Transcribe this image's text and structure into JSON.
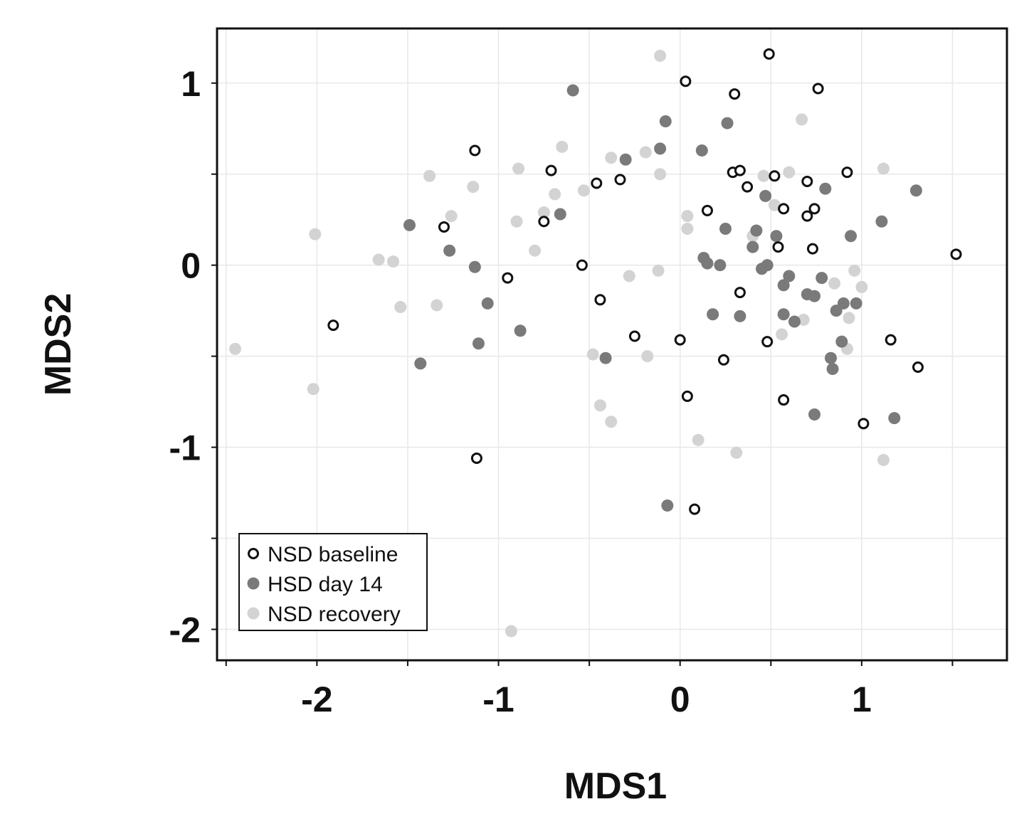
{
  "chart_data": {
    "type": "scatter",
    "xlabel": "MDS1",
    "ylabel": "MDS2",
    "xlim": [
      -2.55,
      1.8
    ],
    "ylim": [
      -2.17,
      1.3
    ],
    "xticks": [
      -2,
      -1,
      0,
      1
    ],
    "yticks": [
      1,
      0,
      -1,
      -2
    ],
    "xtick_labels": [
      "-2",
      "-1",
      "0",
      "1"
    ],
    "ytick_labels": [
      "1",
      "0",
      "-1",
      "-2"
    ],
    "grid": true,
    "legend_position": "bottom-left",
    "series": [
      {
        "name": "NSD baseline",
        "style": "open",
        "color": "#111111",
        "points": [
          [
            0.49,
            1.16
          ],
          [
            0.03,
            1.01
          ],
          [
            0.3,
            0.94
          ],
          [
            0.76,
            0.97
          ],
          [
            -1.13,
            0.63
          ],
          [
            -0.71,
            0.52
          ],
          [
            0.29,
            0.51
          ],
          [
            0.33,
            0.52
          ],
          [
            0.52,
            0.49
          ],
          [
            0.92,
            0.51
          ],
          [
            -0.46,
            0.45
          ],
          [
            -0.33,
            0.47
          ],
          [
            0.7,
            0.46
          ],
          [
            0.37,
            0.43
          ],
          [
            0.15,
            0.3
          ],
          [
            0.57,
            0.31
          ],
          [
            0.74,
            0.31
          ],
          [
            0.7,
            0.27
          ],
          [
            -0.75,
            0.24
          ],
          [
            -1.3,
            0.21
          ],
          [
            0.54,
            0.1
          ],
          [
            0.73,
            0.09
          ],
          [
            1.52,
            0.06
          ],
          [
            -0.54,
            0.0
          ],
          [
            -0.95,
            -0.07
          ],
          [
            0.33,
            -0.15
          ],
          [
            -0.44,
            -0.19
          ],
          [
            -1.91,
            -0.33
          ],
          [
            -0.25,
            -0.39
          ],
          [
            0.0,
            -0.41
          ],
          [
            0.48,
            -0.42
          ],
          [
            1.16,
            -0.41
          ],
          [
            0.24,
            -0.52
          ],
          [
            1.31,
            -0.56
          ],
          [
            0.04,
            -0.72
          ],
          [
            0.57,
            -0.74
          ],
          [
            1.01,
            -0.87
          ],
          [
            -1.12,
            -1.06
          ],
          [
            0.08,
            -1.34
          ]
        ]
      },
      {
        "name": "HSD day 14",
        "style": "filled",
        "color": "#7a7a7a",
        "points": [
          [
            -0.59,
            0.96
          ],
          [
            -0.08,
            0.79
          ],
          [
            0.26,
            0.78
          ],
          [
            -0.11,
            0.64
          ],
          [
            0.12,
            0.63
          ],
          [
            -0.3,
            0.58
          ],
          [
            0.8,
            0.42
          ],
          [
            1.3,
            0.41
          ],
          [
            0.47,
            0.38
          ],
          [
            -0.66,
            0.28
          ],
          [
            1.11,
            0.24
          ],
          [
            -1.49,
            0.22
          ],
          [
            0.25,
            0.2
          ],
          [
            0.42,
            0.19
          ],
          [
            0.53,
            0.16
          ],
          [
            0.94,
            0.16
          ],
          [
            -1.27,
            0.08
          ],
          [
            0.4,
            0.1
          ],
          [
            0.13,
            0.04
          ],
          [
            0.15,
            0.01
          ],
          [
            0.22,
            0.0
          ],
          [
            0.45,
            -0.02
          ],
          [
            0.48,
            0.0
          ],
          [
            -1.13,
            -0.01
          ],
          [
            0.6,
            -0.06
          ],
          [
            0.78,
            -0.07
          ],
          [
            0.57,
            -0.11
          ],
          [
            0.7,
            -0.16
          ],
          [
            0.74,
            -0.17
          ],
          [
            -1.06,
            -0.21
          ],
          [
            0.9,
            -0.21
          ],
          [
            0.97,
            -0.21
          ],
          [
            0.86,
            -0.25
          ],
          [
            0.18,
            -0.27
          ],
          [
            0.33,
            -0.28
          ],
          [
            0.57,
            -0.27
          ],
          [
            0.63,
            -0.31
          ],
          [
            -0.88,
            -0.36
          ],
          [
            -1.11,
            -0.43
          ],
          [
            0.89,
            -0.42
          ],
          [
            0.83,
            -0.51
          ],
          [
            -0.41,
            -0.51
          ],
          [
            -1.43,
            -0.54
          ],
          [
            0.84,
            -0.57
          ],
          [
            0.74,
            -0.82
          ],
          [
            1.18,
            -0.84
          ],
          [
            -0.07,
            -1.32
          ]
        ]
      },
      {
        "name": "NSD recovery",
        "style": "filled",
        "color": "#d3d3d3",
        "points": [
          [
            -0.11,
            1.15
          ],
          [
            0.67,
            0.8
          ],
          [
            -0.65,
            0.65
          ],
          [
            -0.38,
            0.59
          ],
          [
            -0.19,
            0.62
          ],
          [
            -0.89,
            0.53
          ],
          [
            1.12,
            0.53
          ],
          [
            0.6,
            0.51
          ],
          [
            -1.38,
            0.49
          ],
          [
            -0.11,
            0.5
          ],
          [
            0.46,
            0.49
          ],
          [
            -1.14,
            0.43
          ],
          [
            -0.69,
            0.39
          ],
          [
            -0.53,
            0.41
          ],
          [
            0.52,
            0.33
          ],
          [
            -1.26,
            0.27
          ],
          [
            -0.75,
            0.29
          ],
          [
            0.04,
            0.27
          ],
          [
            -0.9,
            0.24
          ],
          [
            0.04,
            0.2
          ],
          [
            -2.01,
            0.17
          ],
          [
            0.4,
            0.16
          ],
          [
            -0.8,
            0.08
          ],
          [
            -1.66,
            0.03
          ],
          [
            -1.58,
            0.02
          ],
          [
            0.96,
            -0.03
          ],
          [
            -0.12,
            -0.03
          ],
          [
            -0.28,
            -0.06
          ],
          [
            0.85,
            -0.1
          ],
          [
            1.0,
            -0.12
          ],
          [
            -1.54,
            -0.23
          ],
          [
            -1.34,
            -0.22
          ],
          [
            0.68,
            -0.3
          ],
          [
            0.93,
            -0.29
          ],
          [
            0.56,
            -0.38
          ],
          [
            -2.45,
            -0.46
          ],
          [
            0.92,
            -0.46
          ],
          [
            -0.48,
            -0.49
          ],
          [
            -0.18,
            -0.5
          ],
          [
            -2.02,
            -0.68
          ],
          [
            -0.44,
            -0.77
          ],
          [
            -0.38,
            -0.86
          ],
          [
            0.1,
            -0.96
          ],
          [
            0.31,
            -1.03
          ],
          [
            1.12,
            -1.07
          ],
          [
            -0.93,
            -2.01
          ]
        ]
      }
    ]
  }
}
